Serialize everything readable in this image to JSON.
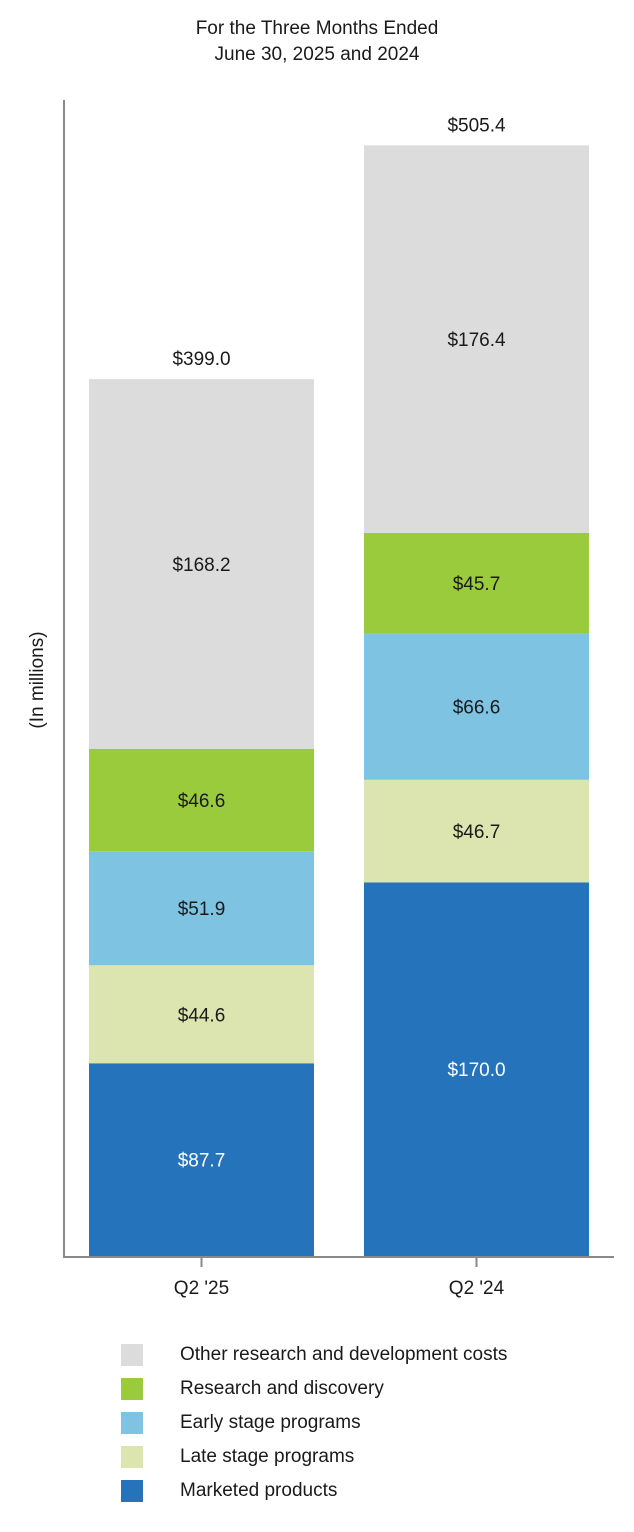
{
  "chart_data": {
    "type": "bar",
    "stacked": true,
    "title": [
      "For the Three Months Ended",
      "June 30, 2025 and 2024"
    ],
    "ylabel": "(In millions)",
    "categories": [
      "Q2 '25",
      "Q2 '24"
    ],
    "totals": [
      399.0,
      505.4
    ],
    "total_labels": [
      "$399.0",
      "$505.4"
    ],
    "ylim": [
      0,
      540
    ],
    "grid": false,
    "legend_position": "bottom",
    "series": [
      {
        "name": "Marketed products",
        "values": [
          87.7,
          170.0
        ],
        "labels": [
          "$87.7",
          "$170.0"
        ],
        "color": "#2573bb",
        "label_color": "#ffffff"
      },
      {
        "name": "Late stage programs",
        "values": [
          44.6,
          46.7
        ],
        "labels": [
          "$44.6",
          "$46.7"
        ],
        "color": "#dce5b0",
        "label_color": "#1a1a1a"
      },
      {
        "name": "Early stage programs",
        "values": [
          51.9,
          66.6
        ],
        "labels": [
          "$51.9",
          "$66.6"
        ],
        "color": "#7ec3e2",
        "label_color": "#1a1a1a"
      },
      {
        "name": "Research and discovery",
        "values": [
          46.6,
          45.7
        ],
        "labels": [
          "$46.6",
          "$45.7"
        ],
        "color": "#9acb3c",
        "label_color": "#1a1a1a"
      },
      {
        "name": "Other research and development costs",
        "values": [
          168.2,
          176.4
        ],
        "labels": [
          "$168.2",
          "$176.4"
        ],
        "color": "#dcdcdc",
        "label_color": "#1a1a1a"
      }
    ],
    "legend_order": [
      "Other research and development costs",
      "Research and discovery",
      "Early stage programs",
      "Late stage programs",
      "Marketed products"
    ]
  }
}
